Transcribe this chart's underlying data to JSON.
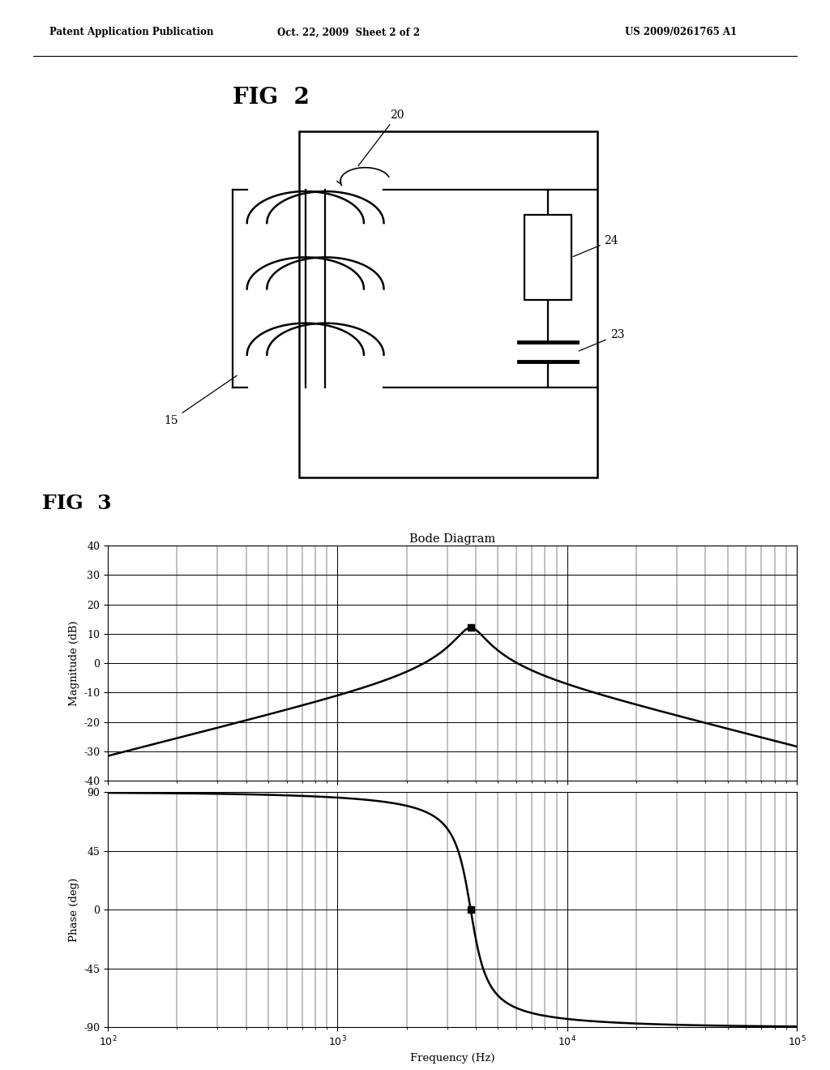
{
  "header_left": "Patent Application Publication",
  "header_mid": "Oct. 22, 2009  Sheet 2 of 2",
  "header_right": "US 2009/0261765 A1",
  "fig2_label": "FIG  2",
  "fig3_label": "FIG  3",
  "bode_title": "Bode Diagram",
  "mag_ylabel": "Magnitude (dB)",
  "phase_ylabel": "Phase (deg)",
  "freq_xlabel": "Frequency (Hz)",
  "mag_yticks": [
    -40,
    -30,
    -20,
    -10,
    0,
    10,
    20,
    30,
    40
  ],
  "phase_yticks": [
    -90,
    -45,
    0,
    45,
    90
  ],
  "mag_ylim": [
    -40,
    40
  ],
  "phase_ylim": [
    -90,
    90
  ],
  "resonant_freq": 3800,
  "Q": 4.0,
  "background_color": "#ffffff",
  "line_color": "#000000"
}
